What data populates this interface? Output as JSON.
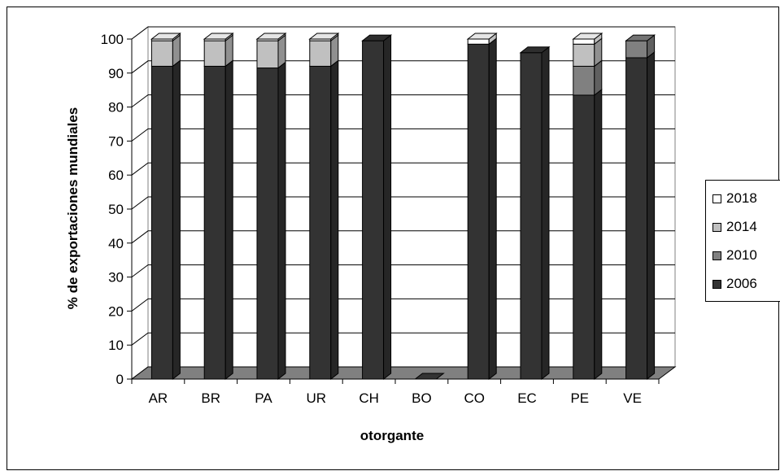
{
  "chart_data": {
    "type": "bar",
    "stacked": true,
    "three_d": true,
    "title": "",
    "xlabel": "otorgante",
    "ylabel": "% de exportaciones mundiales",
    "ylim": [
      0,
      100
    ],
    "yticks": [
      0,
      10,
      20,
      30,
      40,
      50,
      60,
      70,
      80,
      90,
      100
    ],
    "grid": true,
    "legend_position": "right",
    "categories": [
      "AR",
      "BR",
      "PA",
      "UR",
      "CH",
      "BO",
      "CO",
      "EC",
      "PE",
      "VE"
    ],
    "series": [
      {
        "name": "2006",
        "color": "#333333",
        "values": [
          92,
          92,
          91.5,
          92,
          99.5,
          0,
          98.5,
          96,
          83.5,
          94.5
        ]
      },
      {
        "name": "2010",
        "color": "#808080",
        "values": [
          0,
          0,
          0,
          0,
          0,
          0,
          0,
          0,
          8.5,
          5
        ]
      },
      {
        "name": "2014",
        "color": "#c0c0c0",
        "values": [
          7.5,
          7.5,
          8,
          7.5,
          0,
          0,
          0,
          0,
          6.5,
          0
        ]
      },
      {
        "name": "2018",
        "color": "#ffffff",
        "values": [
          0.5,
          0.5,
          0.5,
          0.5,
          0,
          0,
          1.5,
          0,
          1.5,
          0
        ]
      }
    ]
  }
}
